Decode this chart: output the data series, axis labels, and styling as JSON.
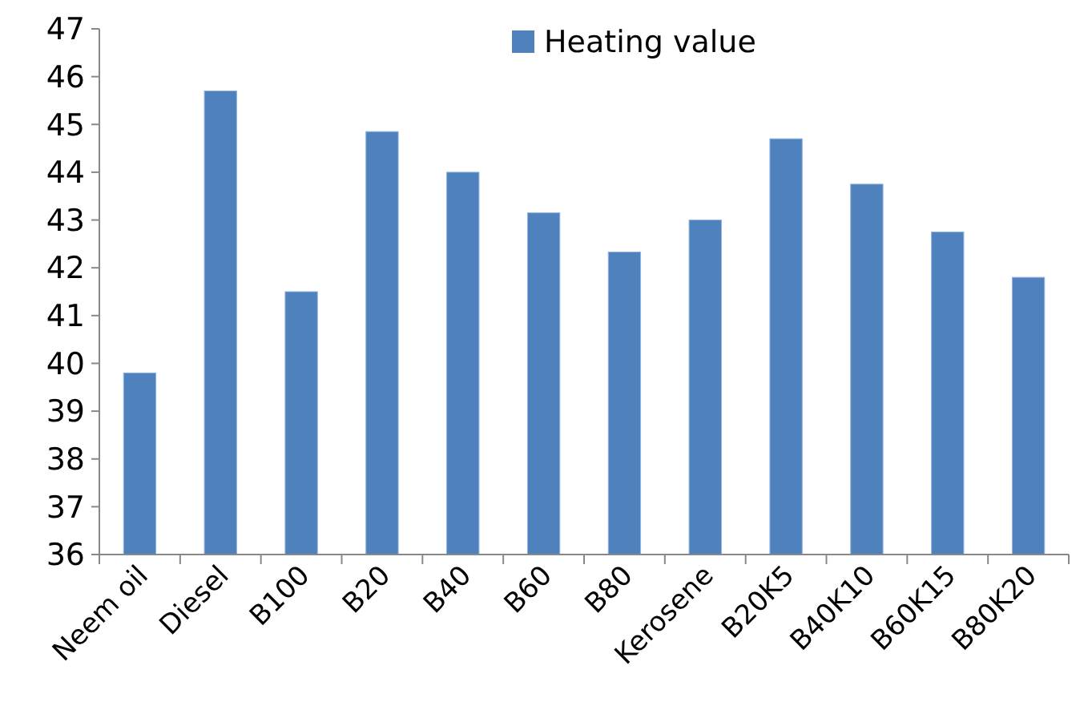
{
  "chart_data": {
    "type": "bar",
    "categories": [
      "Neem oil",
      "Diesel",
      "B100",
      "B20",
      "B40",
      "B60",
      "B80",
      "Kerosene",
      "B20K5",
      "B40K10",
      "B60K15",
      "B80K20"
    ],
    "series": [
      {
        "name": "Heating value",
        "color": "#4f81bd",
        "values": [
          39.8,
          45.7,
          41.5,
          44.85,
          44.0,
          43.15,
          42.33,
          43.0,
          44.7,
          43.75,
          42.75,
          41.8
        ]
      }
    ],
    "ylim": [
      36,
      47
    ],
    "yticks": [
      36,
      37,
      38,
      39,
      40,
      41,
      42,
      43,
      44,
      45,
      46,
      47
    ],
    "grid": false,
    "legend": "top"
  }
}
